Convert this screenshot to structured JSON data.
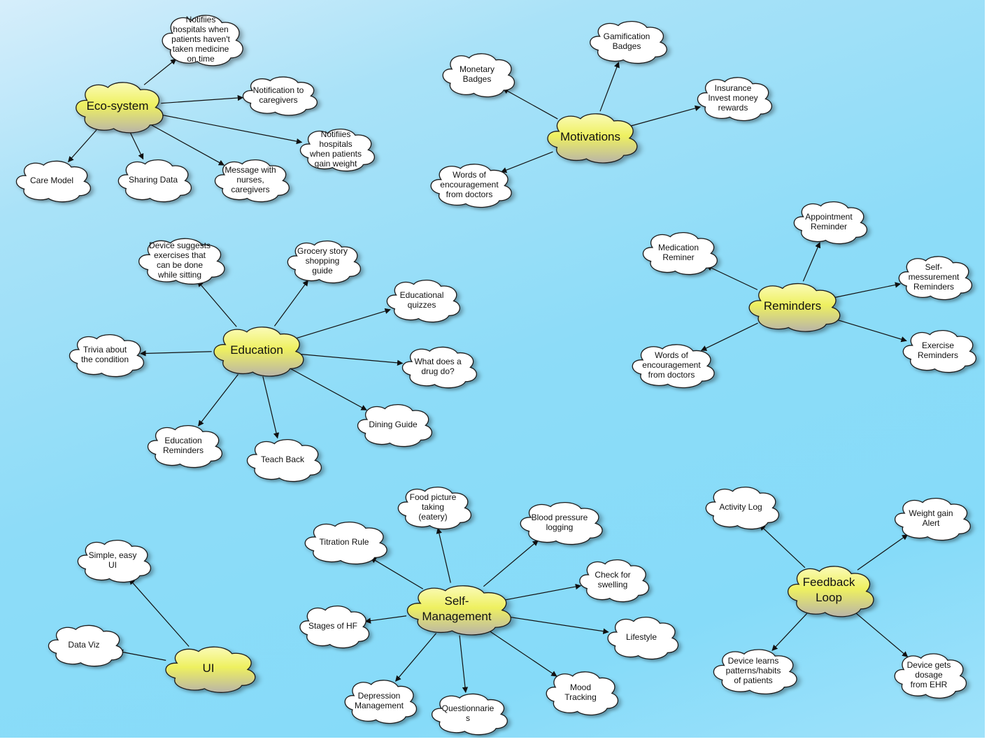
{
  "colors": {
    "hub_top": "#fbfbb8",
    "hub_mid": "#eef060",
    "hub_bottom": "#b9b4a8",
    "leaf_fill": "#ffffff",
    "line": "#111111"
  },
  "hubs": {
    "ecosystem": "Eco-system",
    "motivations": "Motivations",
    "education": "Education",
    "reminders": "Reminders",
    "ui": "UI",
    "selfmanagement": "Self-\nManagement",
    "feedback": "Feedback\nLoop"
  },
  "leaves": {
    "eco_notify_med": "Notifiies\nhospitals when\npatients haven't\ntaken medicine\non time",
    "eco_caregivers": "Notification to\ncaregivers",
    "eco_weight": "Notifiies\nhospitals\nwhen patients\ngain weight",
    "eco_care_model": "Care Model",
    "eco_sharing": "Sharing Data",
    "eco_message": "Message with\nnurses,\ncaregivers",
    "mot_monetary": "Monetary\nBadges",
    "mot_gamification": "Gamification\nBadges",
    "mot_insurance": "Insurance\nInvest money\nrewards",
    "mot_words": "Words of\nencouragement\nfrom doctors",
    "edu_device": "Device suggests\nexercises that\ncan be done\nwhile sitting",
    "edu_grocery": "Grocery story\nshopping\nguide",
    "edu_quizzes": "Educational\nquizzes",
    "edu_trivia": "Trivia about\nthe condition",
    "edu_drug": "What does a\ndrug do?",
    "edu_reminders": "Education\nReminders",
    "edu_teachback": "Teach Back",
    "edu_dining": "Dining Guide",
    "rem_appointment": "Appointment\nReminder",
    "rem_medication": "Medication\nReminer",
    "rem_self": "Self-\nmessurement\nReminders",
    "rem_words": "Words of\nencouragement\nfrom doctors",
    "rem_exercise": "Exercise\nReminders",
    "ui_simple": "Simple, easy\nUI",
    "ui_dataviz": "Data Viz",
    "sm_food": "Food picture\ntaking\n(eatery)",
    "sm_titration": "Titration Rule",
    "sm_bp": "Blood pressure\nlogging",
    "sm_swelling": "Check for\nswelling",
    "sm_stages": "Stages of HF",
    "sm_lifestyle": "Lifestyle",
    "sm_depression": "Depression\nManagement",
    "sm_questionnaires": "Questionnarie\ns",
    "sm_mood": "Mood\nTracking",
    "fb_activity": "Activity Log",
    "fb_weight": "Weight gain\nAlert",
    "fb_learns": "Device learns\npatterns/habits\nof patients",
    "fb_dosage": "Device gets\ndosage\nfrom EHR"
  }
}
